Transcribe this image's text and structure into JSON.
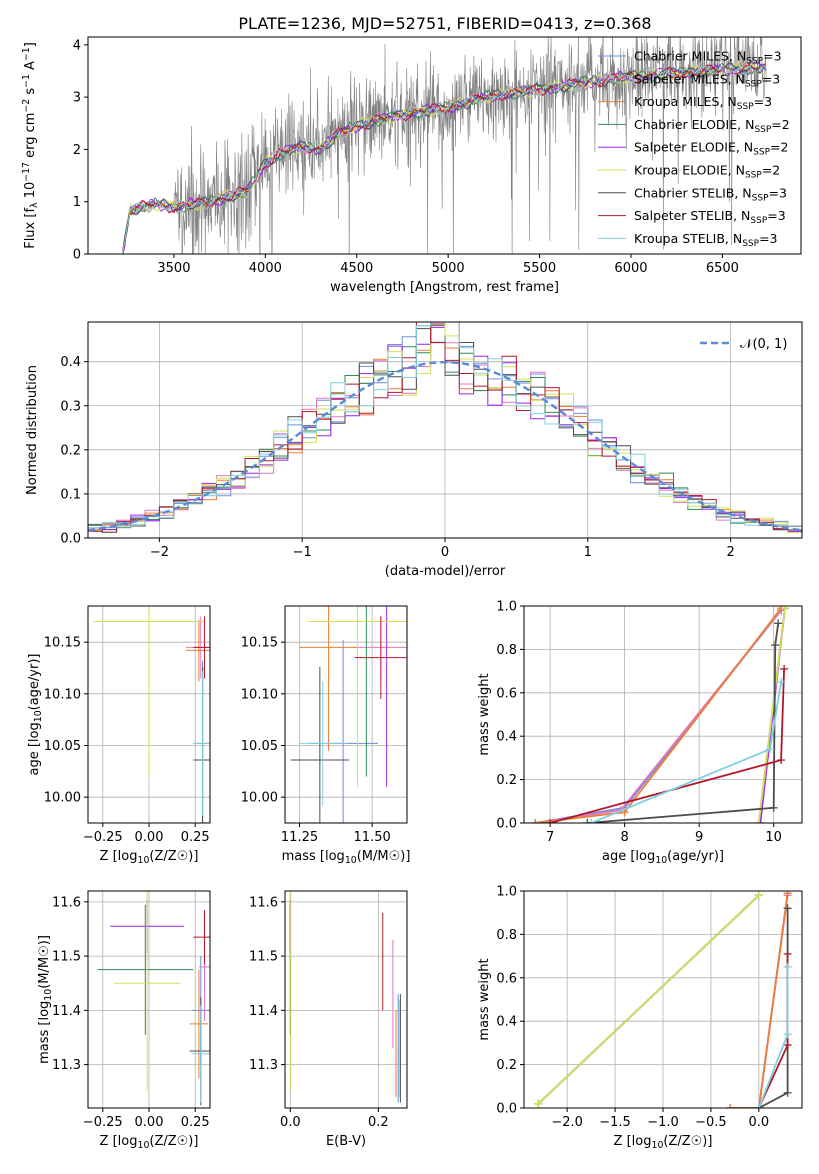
{
  "figure": {
    "title": "PLATE=1236, MJD=52751, FIBERID=0413, z=0.368"
  },
  "models": [
    {
      "key": "chab_miles",
      "label": "Chabrier MILES, N_SSP=3",
      "color": "#6a8fdc"
    },
    {
      "key": "salp_miles",
      "label": "Salpeter MILES, N_SSP=3",
      "color": "#e377c2"
    },
    {
      "key": "krou_miles",
      "label": "Kroupa MILES, N_SSP=3",
      "color": "#ed7d31"
    },
    {
      "key": "chab_elodie",
      "label": "Chabrier ELODIE, N_SSP=2",
      "color": "#2e8b57"
    },
    {
      "key": "salp_elodie",
      "label": "Salpeter ELODIE, N_SSP=2",
      "color": "#a020f0"
    },
    {
      "key": "krou_elodie",
      "label": "Kroupa ELODIE, N_SSP=2",
      "color": "#d4e157"
    },
    {
      "key": "chab_stelib",
      "label": "Chabrier STELIB, N_SSP=3",
      "color": "#4d4d4d"
    },
    {
      "key": "salp_stelib",
      "label": "Salpeter STELIB, N_SSP=3",
      "color": "#b2182b"
    },
    {
      "key": "krou_stelib",
      "label": "Kroupa STELIB, N_SSP=3",
      "color": "#80d0e0"
    }
  ],
  "chart_data": [
    {
      "id": "spectrum",
      "type": "line",
      "xlabel": "wavelength [Angstrom, rest frame]",
      "ylabel": "Flux [f_λ 10^-17 erg cm^-2 s^-1 A^-1]",
      "xlim": [
        3030,
        6930
      ],
      "ylim": [
        0,
        4.15
      ],
      "xticks": [
        3500,
        4000,
        4500,
        5000,
        5500,
        6000,
        6500
      ],
      "yticks": [
        0,
        1,
        2,
        3,
        4
      ],
      "grid": false,
      "legend": "top-right",
      "data_color": "#808080",
      "continuum_anchors": {
        "x": [
          3220,
          3260,
          3400,
          3500,
          3600,
          3700,
          3800,
          3900,
          3950,
          4000,
          4100,
          4200,
          4300,
          4400,
          4500,
          4600,
          4800,
          5000,
          5200,
          5400,
          5600,
          5800,
          6000,
          6200,
          6400,
          6600,
          6740
        ],
        "y": [
          0.0,
          0.85,
          0.95,
          0.9,
          0.95,
          1.0,
          1.1,
          1.2,
          1.45,
          1.75,
          1.95,
          2.05,
          2.0,
          2.3,
          2.45,
          2.55,
          2.7,
          2.8,
          3.0,
          3.1,
          3.2,
          3.3,
          3.4,
          3.45,
          3.5,
          3.55,
          3.55
        ]
      }
    },
    {
      "id": "residuals",
      "type": "line",
      "xlabel": "(data-model)/error",
      "ylabel": "Normed distribution",
      "xlim": [
        -2.5,
        2.5
      ],
      "ylim": [
        0,
        0.49
      ],
      "xticks": [
        -2,
        -1,
        0,
        1,
        2
      ],
      "yticks": [
        0.0,
        0.1,
        0.2,
        0.3,
        0.4
      ],
      "grid": true,
      "legend": "top-right",
      "reference_label": "𝒩(0, 1)",
      "reference_color": "#5b8ad6",
      "bin_width": 0.1
    },
    {
      "id": "age_vs_Z",
      "type": "scatter",
      "xlabel": "Z [log10(Z/Z☉)]",
      "ylabel": "age  [log10(age/yr)]",
      "xlim": [
        -0.33,
        0.33
      ],
      "ylim": [
        9.975,
        10.185
      ],
      "xticks": [
        -0.25,
        0.0,
        0.25
      ],
      "yticks": [
        10.0,
        10.05,
        10.1,
        10.15
      ],
      "grid": true,
      "points": [
        {
          "model": "chab_miles",
          "x": 0.29,
          "y": 10.052,
          "xerr": 0.05,
          "yerr": 0.08
        },
        {
          "model": "salp_miles",
          "x": 0.28,
          "y": 10.145,
          "xerr": 0.08,
          "yerr": 0.03
        },
        {
          "model": "krou_miles",
          "x": 0.27,
          "y": 10.142,
          "xerr": 0.07,
          "yerr": 0.03
        },
        {
          "model": "chab_elodie",
          "x": 0.0,
          "y": 10.17,
          "xerr": 0.3,
          "yerr": 0.15
        },
        {
          "model": "salp_elodie",
          "x": 0.0,
          "y": 10.17,
          "xerr": 0.3,
          "yerr": 0.14
        },
        {
          "model": "krou_elodie",
          "x": 0.0,
          "y": 10.17,
          "xerr": 0.3,
          "yerr": 0.15
        },
        {
          "model": "chab_stelib",
          "x": 0.29,
          "y": 10.036,
          "xerr": 0.05,
          "yerr": 0.09
        },
        {
          "model": "salp_stelib",
          "x": 0.3,
          "y": 10.145,
          "xerr": 0.06,
          "yerr": 0.03
        },
        {
          "model": "krou_stelib",
          "x": 0.29,
          "y": 10.052,
          "xerr": 0.05,
          "yerr": 0.07
        }
      ]
    },
    {
      "id": "age_vs_mass",
      "type": "scatter",
      "xlabel": "mass [log10(M/M☉)]",
      "ylabel": "",
      "xlim": [
        11.2,
        11.62
      ],
      "ylim": [
        9.975,
        10.185
      ],
      "xticks": [
        11.25,
        11.5
      ],
      "yticks": [
        10.0,
        10.05,
        10.1,
        10.15
      ],
      "grid": true,
      "points": [
        {
          "model": "chab_miles",
          "x": 11.4,
          "y": 10.052,
          "xerr": 0.12,
          "yerr": 0.1
        },
        {
          "model": "salp_miles",
          "x": 11.53,
          "y": 10.145,
          "xerr": 0.09,
          "yerr": 0.03
        },
        {
          "model": "krou_miles",
          "x": 11.35,
          "y": 10.145,
          "xerr": 0.1,
          "yerr": 0.1
        },
        {
          "model": "chab_elodie",
          "x": 11.48,
          "y": 10.17,
          "xerr": 0.1,
          "yerr": 0.15
        },
        {
          "model": "salp_elodie",
          "x": 11.55,
          "y": 10.17,
          "xerr": 0.08,
          "yerr": 0.16
        },
        {
          "model": "krou_elodie",
          "x": 11.45,
          "y": 10.17,
          "xerr": 0.17,
          "yerr": 0.16
        },
        {
          "model": "chab_stelib",
          "x": 11.32,
          "y": 10.036,
          "xerr": 0.1,
          "yerr": 0.09
        },
        {
          "model": "salp_stelib",
          "x": 11.53,
          "y": 10.135,
          "xerr": 0.09,
          "yerr": 0.04
        },
        {
          "model": "krou_stelib",
          "x": 11.33,
          "y": 10.052,
          "xerr": 0.08,
          "yerr": 0.06
        }
      ]
    },
    {
      "id": "weight_vs_age",
      "type": "line",
      "xlabel": "age  [log10(age/yr)]",
      "ylabel": "mass weight",
      "xlim": [
        6.65,
        10.38
      ],
      "ylim": [
        0,
        1.0
      ],
      "xticks": [
        7,
        8,
        9,
        10
      ],
      "yticks": [
        0.0,
        0.2,
        0.4,
        0.6,
        0.8,
        1.0
      ],
      "grid": true,
      "series": [
        {
          "model": "chab_miles",
          "x": [
            6.8,
            8.0,
            10.1
          ],
          "y": [
            0.0,
            0.07,
            0.98
          ]
        },
        {
          "model": "salp_miles",
          "x": [
            6.8,
            7.95,
            10.1
          ],
          "y": [
            0.0,
            0.06,
            0.98
          ]
        },
        {
          "model": "krou_miles",
          "x": [
            6.8,
            8.0,
            10.1
          ],
          "y": [
            0.0,
            0.05,
            0.99
          ]
        },
        {
          "model": "chab_elodie",
          "x": [
            9.8,
            10.15
          ],
          "y": [
            0.0,
            0.99
          ]
        },
        {
          "model": "salp_elodie",
          "x": [
            9.82,
            10.15
          ],
          "y": [
            0.0,
            0.99
          ]
        },
        {
          "model": "krou_elodie",
          "x": [
            9.8,
            10.15
          ],
          "y": [
            0.0,
            0.99
          ]
        },
        {
          "model": "chab_stelib",
          "x": [
            7.5,
            10.0,
            10.02,
            10.06
          ],
          "y": [
            0.0,
            0.07,
            0.82,
            0.92
          ]
        },
        {
          "model": "salp_stelib",
          "x": [
            7.0,
            10.1,
            10.14
          ],
          "y": [
            0.0,
            0.29,
            0.71
          ]
        },
        {
          "model": "krou_stelib",
          "x": [
            7.55,
            9.95,
            10.1
          ],
          "y": [
            0.0,
            0.34,
            0.65
          ]
        }
      ]
    },
    {
      "id": "mass_vs_Z",
      "type": "scatter",
      "xlabel": "Z [log10(Z/Z☉)]",
      "ylabel": "mass [log10(M/M☉)]",
      "xlim": [
        -0.33,
        0.33
      ],
      "ylim": [
        11.22,
        11.62
      ],
      "xticks": [
        -0.25,
        0.0,
        0.25
      ],
      "yticks": [
        11.3,
        11.4,
        11.5,
        11.6
      ],
      "grid": true,
      "points": [
        {
          "model": "chab_miles",
          "x": 0.28,
          "y": 11.4,
          "xerr": 0.05,
          "yerr": 0.1
        },
        {
          "model": "salp_miles",
          "x": 0.3,
          "y": 11.48,
          "xerr": 0.03,
          "yerr": 0.1
        },
        {
          "model": "krou_miles",
          "x": 0.27,
          "y": 11.375,
          "xerr": 0.05,
          "yerr": 0.1
        },
        {
          "model": "chab_elodie",
          "x": -0.02,
          "y": 11.475,
          "xerr": 0.26,
          "yerr": 0.12
        },
        {
          "model": "salp_elodie",
          "x": -0.01,
          "y": 11.555,
          "xerr": 0.2,
          "yerr": 0.05
        },
        {
          "model": "krou_elodie",
          "x": -0.01,
          "y": 11.45,
          "xerr": 0.18,
          "yerr": 0.2
        },
        {
          "model": "chab_stelib",
          "x": 0.28,
          "y": 11.325,
          "xerr": 0.06,
          "yerr": 0.1
        },
        {
          "model": "salp_stelib",
          "x": 0.3,
          "y": 11.535,
          "xerr": 0.06,
          "yerr": 0.05
        },
        {
          "model": "krou_stelib",
          "x": 0.28,
          "y": 11.32,
          "xerr": 0.05,
          "yerr": 0.09
        }
      ]
    },
    {
      "id": "mass_vs_ebv",
      "type": "scatter",
      "xlabel": "E(B-V)",
      "ylabel": "",
      "xlim": [
        -0.012,
        0.265
      ],
      "ylim": [
        11.22,
        11.62
      ],
      "xticks": [
        0.0,
        0.2
      ],
      "yticks": [
        11.3,
        11.4,
        11.5,
        11.6
      ],
      "grid": true,
      "points": [
        {
          "model": "chab_miles",
          "x": 0.245,
          "y": 11.33,
          "xerr": 0.0,
          "yerr": 0.1
        },
        {
          "model": "salp_miles",
          "x": 0.233,
          "y": 11.43,
          "xerr": 0.0,
          "yerr": 0.1
        },
        {
          "model": "krou_miles",
          "x": 0.24,
          "y": 11.32,
          "xerr": 0.0,
          "yerr": 0.08
        },
        {
          "model": "chab_elodie",
          "x": 0.0,
          "y": 11.475,
          "xerr": 0.0,
          "yerr": 0.12
        },
        {
          "model": "salp_elodie",
          "x": 0.0,
          "y": 11.555,
          "xerr": 0.0,
          "yerr": 0.05
        },
        {
          "model": "krou_elodie",
          "x": 0.001,
          "y": 11.45,
          "xerr": 0.0,
          "yerr": 0.2
        },
        {
          "model": "chab_stelib",
          "x": 0.25,
          "y": 11.33,
          "xerr": 0.0,
          "yerr": 0.1
        },
        {
          "model": "salp_stelib",
          "x": 0.21,
          "y": 11.49,
          "xerr": 0.0,
          "yerr": 0.09
        },
        {
          "model": "krou_stelib",
          "x": 0.247,
          "y": 11.33,
          "xerr": 0.0,
          "yerr": 0.09
        }
      ]
    },
    {
      "id": "weight_vs_Z",
      "type": "line",
      "xlabel": "Z [log10(Z/Z☉)]",
      "ylabel": "mass weight",
      "xlim": [
        -2.45,
        0.45
      ],
      "ylim": [
        0,
        1.0
      ],
      "xticks": [
        -2.0,
        -1.5,
        -1.0,
        -0.5,
        0.0
      ],
      "yticks": [
        0.0,
        0.2,
        0.4,
        0.6,
        0.8,
        1.0
      ],
      "grid": true,
      "series": [
        {
          "model": "chab_miles",
          "x": [
            -0.3,
            0.0,
            0.3
          ],
          "y": [
            0.0,
            0.0,
            0.99
          ]
        },
        {
          "model": "salp_miles",
          "x": [
            -0.3,
            0.0,
            0.3
          ],
          "y": [
            0.0,
            0.0,
            0.98
          ]
        },
        {
          "model": "krou_miles",
          "x": [
            -0.3,
            0.0,
            0.3
          ],
          "y": [
            0.0,
            0.0,
            0.99
          ]
        },
        {
          "model": "chab_elodie",
          "x": [
            -2.3,
            0.0
          ],
          "y": [
            0.02,
            0.98
          ]
        },
        {
          "model": "salp_elodie",
          "x": [
            -2.3,
            0.0
          ],
          "y": [
            0.02,
            0.98
          ]
        },
        {
          "model": "krou_elodie",
          "x": [
            -2.3,
            0.0
          ],
          "y": [
            0.02,
            0.98
          ]
        },
        {
          "model": "chab_stelib",
          "x": [
            0.0,
            0.3,
            0.3
          ],
          "y": [
            0.0,
            0.07,
            0.92
          ]
        },
        {
          "model": "salp_stelib",
          "x": [
            0.0,
            0.3,
            0.3
          ],
          "y": [
            0.0,
            0.29,
            0.71
          ]
        },
        {
          "model": "krou_stelib",
          "x": [
            0.0,
            0.3,
            0.3
          ],
          "y": [
            0.0,
            0.34,
            0.65
          ]
        }
      ]
    }
  ]
}
